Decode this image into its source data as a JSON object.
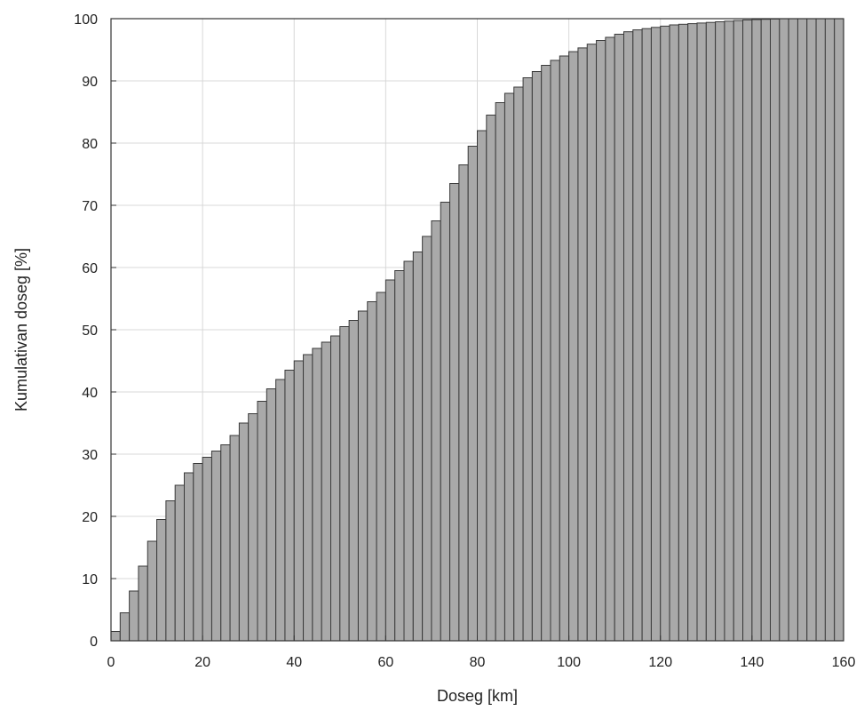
{
  "chart_data": {
    "type": "bar",
    "xlabel": "Doseg [km]",
    "ylabel": "Kumulativan doseg [%]",
    "xlim": [
      0,
      160
    ],
    "ylim": [
      0,
      100
    ],
    "x_ticks": [
      "0",
      "20",
      "40",
      "60",
      "80",
      "100",
      "120",
      "140",
      "160"
    ],
    "y_ticks": [
      "0",
      "10",
      "20",
      "30",
      "40",
      "50",
      "60",
      "70",
      "80",
      "90",
      "100"
    ],
    "grid": true,
    "bin_width": 2,
    "x": [
      1,
      3,
      5,
      7,
      9,
      11,
      13,
      15,
      17,
      19,
      21,
      23,
      25,
      27,
      29,
      31,
      33,
      35,
      37,
      39,
      41,
      43,
      45,
      47,
      49,
      51,
      53,
      55,
      57,
      59,
      61,
      63,
      65,
      67,
      69,
      71,
      73,
      75,
      77,
      79,
      81,
      83,
      85,
      87,
      89,
      91,
      93,
      95,
      97,
      99,
      101,
      103,
      105,
      107,
      109,
      111,
      113,
      115,
      117,
      119,
      121,
      123,
      125,
      127,
      129,
      131,
      133,
      135,
      137,
      139,
      141,
      143,
      145,
      147,
      149,
      151,
      153,
      155,
      157,
      159
    ],
    "values": [
      1.5,
      4.5,
      8,
      12,
      16,
      19.5,
      22.5,
      25,
      27,
      28.5,
      29.5,
      30.5,
      31.5,
      33,
      35,
      36.5,
      38.5,
      40.5,
      42,
      43.5,
      45,
      46,
      47,
      48,
      49,
      50.5,
      51.5,
      53,
      54.5,
      56,
      58,
      59.5,
      61,
      62.5,
      65,
      67.5,
      70.5,
      73.5,
      76.5,
      79.5,
      82,
      84.5,
      86.5,
      88,
      89,
      90.5,
      91.5,
      92.5,
      93.3,
      94,
      94.7,
      95.3,
      95.9,
      96.5,
      97,
      97.5,
      97.9,
      98.2,
      98.4,
      98.6,
      98.8,
      99,
      99.1,
      99.2,
      99.3,
      99.4,
      99.5,
      99.6,
      99.7,
      99.8,
      99.85,
      99.9,
      99.95,
      100,
      100,
      100,
      100,
      100,
      100,
      100
    ]
  }
}
